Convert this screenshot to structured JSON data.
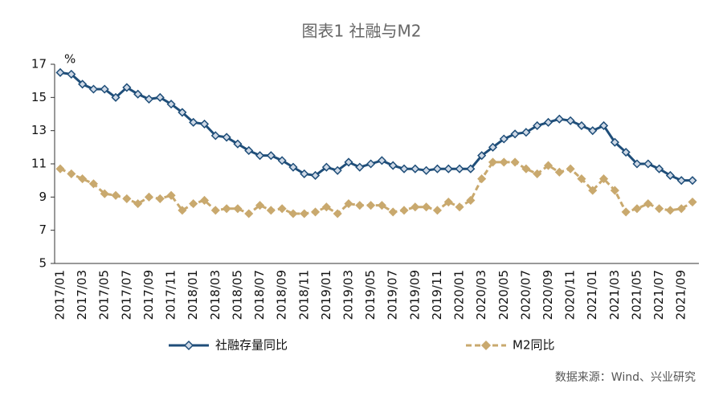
{
  "chart_data": {
    "type": "line",
    "title": "图表1  社融与M2",
    "y_unit": "%",
    "source": "数据来源：Wind、兴业研究",
    "categories": [
      "2017/01",
      null,
      "2017/03",
      null,
      "2017/05",
      null,
      "2017/07",
      null,
      "2017/09",
      null,
      "2017/11",
      null,
      "2018/01",
      null,
      "2018/03",
      null,
      "2018/05",
      null,
      "2018/07",
      null,
      "2018/09",
      null,
      "2018/11",
      null,
      "2019/01",
      null,
      "2019/03",
      null,
      "2019/05",
      null,
      "2019/07",
      null,
      "2019/09",
      null,
      "2019/11",
      null,
      "2020/01",
      null,
      "2020/03",
      null,
      "2020/05",
      null,
      "2020/07",
      null,
      "2020/09",
      null,
      "2020/11",
      null,
      "2021/01",
      null,
      "2021/03",
      null,
      "2021/05",
      null,
      "2021/07",
      null,
      "2021/09",
      null
    ],
    "series": [
      {
        "name": "社融存量同比",
        "color": "#1f4e79",
        "dashed": false,
        "values": [
          16.5,
          16.4,
          15.8,
          15.5,
          15.5,
          15.0,
          15.6,
          15.2,
          14.9,
          15.0,
          14.6,
          14.1,
          13.5,
          13.4,
          12.7,
          12.6,
          12.2,
          11.8,
          11.5,
          11.5,
          11.2,
          10.8,
          10.4,
          10.3,
          10.8,
          10.6,
          11.1,
          10.8,
          11.0,
          11.2,
          10.9,
          10.7,
          10.7,
          10.6,
          10.7,
          10.7,
          10.7,
          10.7,
          11.5,
          12.0,
          12.5,
          12.8,
          12.9,
          13.3,
          13.5,
          13.7,
          13.6,
          13.3,
          13.0,
          13.3,
          12.3,
          11.7,
          11.0,
          11.0,
          10.7,
          10.3,
          10.0,
          10.0
        ]
      },
      {
        "name": "M2同比",
        "color": "#c9a96e",
        "dashed": true,
        "values": [
          10.7,
          10.4,
          10.1,
          9.8,
          9.2,
          9.1,
          8.9,
          8.6,
          9.0,
          8.9,
          9.1,
          8.2,
          8.6,
          8.8,
          8.2,
          8.3,
          8.3,
          8.0,
          8.5,
          8.2,
          8.3,
          8.0,
          8.0,
          8.1,
          8.4,
          8.0,
          8.6,
          8.5,
          8.5,
          8.5,
          8.1,
          8.2,
          8.4,
          8.4,
          8.2,
          8.7,
          8.4,
          8.8,
          10.1,
          11.1,
          11.1,
          11.1,
          10.7,
          10.4,
          10.9,
          10.5,
          10.7,
          10.1,
          9.4,
          10.1,
          9.4,
          8.1,
          8.3,
          8.6,
          8.3,
          8.2,
          8.3,
          8.7
        ]
      }
    ],
    "ylim": [
      5,
      17
    ],
    "yticks": [
      5,
      7,
      9,
      11,
      13,
      15,
      17
    ],
    "grid": false
  }
}
